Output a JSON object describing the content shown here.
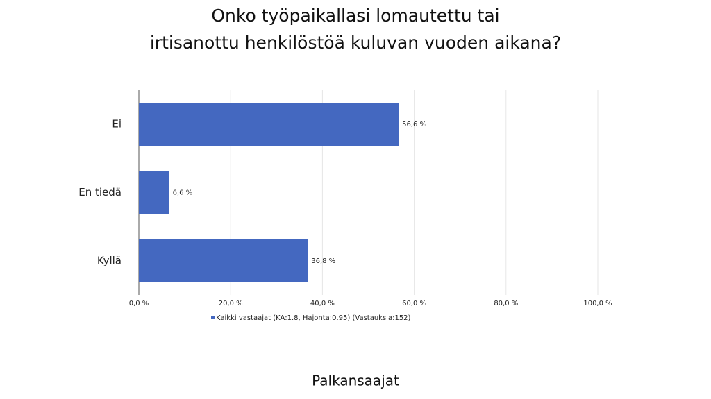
{
  "chart_data": {
    "type": "barh",
    "title": [
      "Onko työpaikallasi lomautettu tai",
      "irtisanottu henkilöstöä kuluvan vuoden aikana?"
    ],
    "categories": [
      "Ei",
      "En tiedä",
      "Kyllä"
    ],
    "series": [
      {
        "name": "Kaikki vastaajat (KA:1.8, Hajonta:0.95) (Vastauksia:152)",
        "color": "#4468c0",
        "values": [
          56.6,
          6.6,
          36.8
        ],
        "value_labels": [
          "56,6 %",
          "6,6 %",
          "36,8 %"
        ]
      }
    ],
    "xlim": [
      0,
      100
    ],
    "xticks": [
      {
        "value": 0,
        "label": "0,0 %"
      },
      {
        "value": 20,
        "label": "20,0 %"
      },
      {
        "value": 40,
        "label": "40,0 %"
      },
      {
        "value": 60,
        "label": "60,0 %"
      },
      {
        "value": 80,
        "label": "80,0 %"
      },
      {
        "value": 100,
        "label": "100,0 %"
      }
    ],
    "grid": true
  },
  "footer": "Palkansaajat"
}
